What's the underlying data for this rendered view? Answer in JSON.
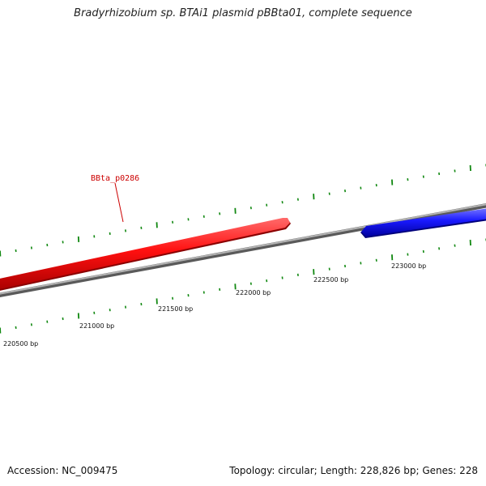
{
  "title": "Bradyrhizobium sp. BTAi1 plasmid pBBta01, complete sequence",
  "footer": {
    "accession": "Accession: NC_009475",
    "summary": "Topology: circular; Length: 228,826 bp; Genes: 228"
  },
  "colors": {
    "backbone": "#8a8a8a",
    "forward_gene": "#ee0000",
    "reverse_gene": "#1a1aee",
    "ticks": "#118811",
    "gene_label": "#cc0000"
  },
  "genes": [
    {
      "id": "BBta_p0286",
      "label": "BBta_p0286",
      "strand": "forward",
      "color": "#ee0000"
    },
    {
      "id": "reverse-gene",
      "label": "",
      "strand": "reverse",
      "color": "#1a1aee"
    }
  ],
  "tick_labels": [
    "220500 bp",
    "221000 bp",
    "221500 bp",
    "222000 bp",
    "222500 bp",
    "223000 bp"
  ]
}
